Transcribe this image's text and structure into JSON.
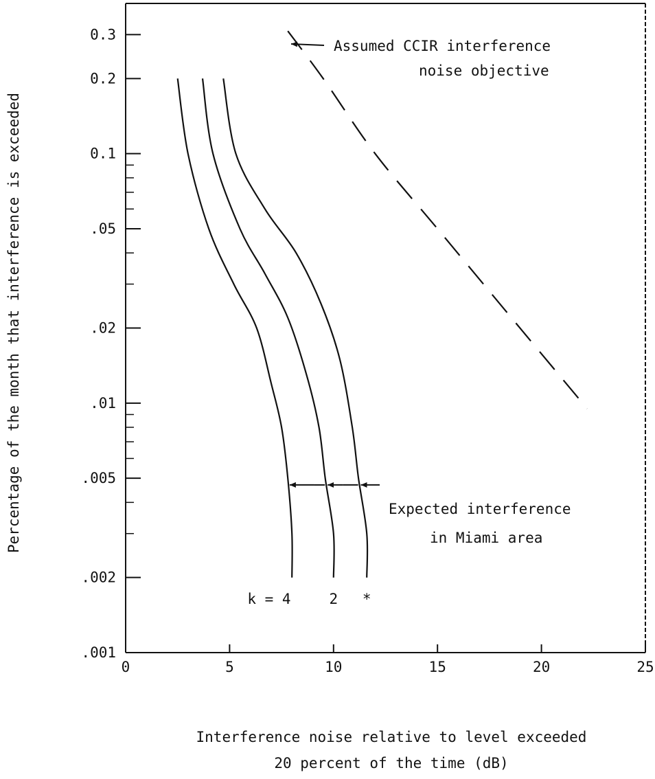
{
  "chart_data": {
    "type": "line",
    "title": "",
    "xlabel_line1": "Interference noise relative to level exceeded",
    "xlabel_line2": "20 percent of the time (dB)",
    "ylabel": "Percentage of the month that interference is exceeded",
    "xlim": [
      0,
      25
    ],
    "ylim": [
      0.001,
      0.4
    ],
    "yscale": "log",
    "grid": false,
    "x_ticks": [
      {
        "value": 0,
        "label": "0"
      },
      {
        "value": 5,
        "label": "5"
      },
      {
        "value": 10,
        "label": "10"
      },
      {
        "value": 15,
        "label": "15"
      },
      {
        "value": 20,
        "label": "20"
      },
      {
        "value": 25,
        "label": "25"
      }
    ],
    "y_ticks": [
      {
        "value": 0.001,
        "label": ".001"
      },
      {
        "value": 0.002,
        "label": ".002"
      },
      {
        "value": 0.005,
        "label": ".005"
      },
      {
        "value": 0.01,
        "label": ".01"
      },
      {
        "value": 0.02,
        "label": ".02"
      },
      {
        "value": 0.05,
        "label": ".05"
      },
      {
        "value": 0.1,
        "label": "0.1"
      },
      {
        "value": 0.2,
        "label": "0.2"
      },
      {
        "value": 0.3,
        "label": "0.3"
      }
    ],
    "y_minor_ticks": [
      0.003,
      0.004,
      0.006,
      0.007,
      0.008,
      0.009,
      0.03,
      0.04,
      0.06,
      0.07,
      0.08,
      0.09
    ],
    "series": [
      {
        "name": "k = 4",
        "style": "solid",
        "points": [
          [
            2.5,
            0.2
          ],
          [
            3.0,
            0.1
          ],
          [
            4.0,
            0.05
          ],
          [
            5.2,
            0.03
          ],
          [
            6.3,
            0.02
          ],
          [
            7.0,
            0.012
          ],
          [
            7.5,
            0.008
          ],
          [
            7.8,
            0.005
          ],
          [
            8.0,
            0.003
          ],
          [
            8.0,
            0.002
          ]
        ]
      },
      {
        "name": "2",
        "style": "solid",
        "points": [
          [
            3.7,
            0.2
          ],
          [
            4.2,
            0.1
          ],
          [
            5.5,
            0.05
          ],
          [
            6.7,
            0.033
          ],
          [
            7.8,
            0.022
          ],
          [
            8.7,
            0.013
          ],
          [
            9.3,
            0.008
          ],
          [
            9.6,
            0.005
          ],
          [
            10.0,
            0.003
          ],
          [
            10.0,
            0.002
          ]
        ]
      },
      {
        "name": "*",
        "style": "solid",
        "points": [
          [
            4.7,
            0.2
          ],
          [
            5.3,
            0.1
          ],
          [
            6.7,
            0.06
          ],
          [
            8.2,
            0.04
          ],
          [
            9.4,
            0.025
          ],
          [
            10.3,
            0.015
          ],
          [
            10.9,
            0.008
          ],
          [
            11.2,
            0.005
          ],
          [
            11.6,
            0.003
          ],
          [
            11.6,
            0.002
          ]
        ]
      },
      {
        "name": "Assumed CCIR interference noise objective",
        "style": "dashed",
        "points": [
          [
            7.8,
            0.31
          ],
          [
            9.5,
            0.2
          ],
          [
            12.0,
            0.1
          ],
          [
            15.0,
            0.05
          ],
          [
            18.0,
            0.025
          ],
          [
            22.2,
            0.0095
          ]
        ]
      }
    ],
    "curve_labels": [
      {
        "text": "k = 4",
        "x": 6.9,
        "y": 0.00165
      },
      {
        "text": "2",
        "x": 10.0,
        "y": 0.00165
      },
      {
        "text": "*",
        "x": 11.6,
        "y": 0.00165
      }
    ],
    "annotations": [
      {
        "line1": "Assumed CCIR interference",
        "line2": "noise objective"
      },
      {
        "line1": "Expected interference",
        "line2": "in Miami area",
        "level": 0.0047
      }
    ]
  }
}
